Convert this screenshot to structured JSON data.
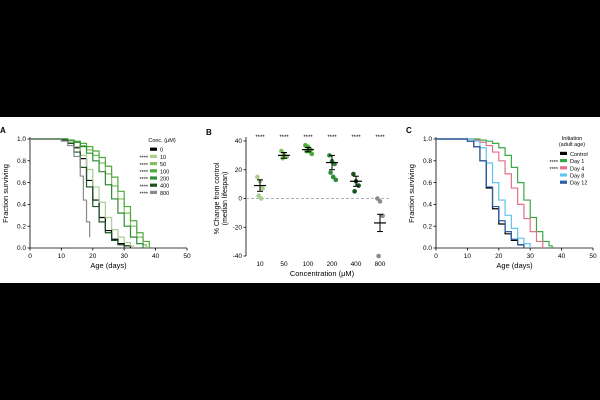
{
  "chart_data": [
    {
      "panel_label": "A",
      "type": "line",
      "step": true,
      "xlabel": "Age (days)",
      "ylabel": "Fraction surviving",
      "xlim": [
        0,
        50
      ],
      "ylim": [
        0,
        1.0
      ],
      "x_ticks": [
        "0",
        "10",
        "20",
        "30",
        "40",
        "50"
      ],
      "y_ticks": [
        "0.0",
        "0.2",
        "0.4",
        "0.6",
        "0.8",
        "1.0"
      ],
      "legend_title": "Conc. (μM)",
      "legend_placement": "top-right",
      "legend_marks": [
        "",
        "****",
        "****",
        "****",
        "****",
        "****",
        "****"
      ],
      "series": [
        {
          "name": "0",
          "color": "#000000",
          "points": [
            [
              0,
              1
            ],
            [
              8,
              1
            ],
            [
              10,
              0.99
            ],
            [
              12,
              0.97
            ],
            [
              14,
              0.92
            ],
            [
              16,
              0.82
            ],
            [
              18,
              0.62
            ],
            [
              20,
              0.44
            ],
            [
              22,
              0.28
            ],
            [
              24,
              0.16
            ],
            [
              26,
              0.08
            ],
            [
              28,
              0.04
            ],
            [
              30,
              0.02
            ],
            [
              32,
              0
            ]
          ]
        },
        {
          "name": "10",
          "color": "#a8cf8e",
          "points": [
            [
              0,
              1
            ],
            [
              8,
              1
            ],
            [
              10,
              0.99
            ],
            [
              12,
              0.97
            ],
            [
              14,
              0.93
            ],
            [
              16,
              0.85
            ],
            [
              18,
              0.72
            ],
            [
              20,
              0.56
            ],
            [
              22,
              0.42
            ],
            [
              24,
              0.28
            ],
            [
              26,
              0.17
            ],
            [
              28,
              0.1
            ],
            [
              30,
              0.05
            ],
            [
              32,
              0.02
            ],
            [
              33,
              0
            ]
          ]
        },
        {
          "name": "50",
          "color": "#7fbf5f",
          "points": [
            [
              0,
              1
            ],
            [
              10,
              1
            ],
            [
              12,
              0.99
            ],
            [
              14,
              0.97
            ],
            [
              16,
              0.94
            ],
            [
              18,
              0.9
            ],
            [
              20,
              0.85
            ],
            [
              22,
              0.78
            ],
            [
              24,
              0.68
            ],
            [
              26,
              0.57
            ],
            [
              28,
              0.45
            ],
            [
              30,
              0.32
            ],
            [
              32,
              0.2
            ],
            [
              34,
              0.1
            ],
            [
              36,
              0.03
            ],
            [
              37,
              0
            ]
          ]
        },
        {
          "name": "100",
          "color": "#4eab3e",
          "points": [
            [
              0,
              1
            ],
            [
              10,
              1
            ],
            [
              12,
              0.99
            ],
            [
              14,
              0.98
            ],
            [
              16,
              0.96
            ],
            [
              18,
              0.93
            ],
            [
              20,
              0.89
            ],
            [
              22,
              0.83
            ],
            [
              24,
              0.75
            ],
            [
              26,
              0.65
            ],
            [
              28,
              0.52
            ],
            [
              30,
              0.38
            ],
            [
              32,
              0.25
            ],
            [
              34,
              0.14
            ],
            [
              36,
              0.06
            ],
            [
              38,
              0
            ]
          ]
        },
        {
          "name": "200",
          "color": "#2e8b36",
          "points": [
            [
              0,
              1
            ],
            [
              10,
              1
            ],
            [
              12,
              0.99
            ],
            [
              14,
              0.97
            ],
            [
              16,
              0.93
            ],
            [
              18,
              0.87
            ],
            [
              20,
              0.8
            ],
            [
              22,
              0.7
            ],
            [
              24,
              0.58
            ],
            [
              26,
              0.45
            ],
            [
              28,
              0.32
            ],
            [
              30,
              0.2
            ],
            [
              32,
              0.1
            ],
            [
              34,
              0.04
            ],
            [
              36,
              0
            ]
          ]
        },
        {
          "name": "400",
          "color": "#1a5220",
          "points": [
            [
              0,
              1
            ],
            [
              8,
              1
            ],
            [
              10,
              0.99
            ],
            [
              12,
              0.96
            ],
            [
              14,
              0.88
            ],
            [
              16,
              0.74
            ],
            [
              18,
              0.56
            ],
            [
              20,
              0.38
            ],
            [
              22,
              0.24
            ],
            [
              24,
              0.14
            ],
            [
              26,
              0.07
            ],
            [
              28,
              0.03
            ],
            [
              30,
              0
            ]
          ]
        },
        {
          "name": "800",
          "color": "#8a8a8a",
          "points": [
            [
              0,
              1
            ],
            [
              8,
              1
            ],
            [
              10,
              0.98
            ],
            [
              12,
              0.94
            ],
            [
              14,
              0.84
            ],
            [
              16,
              0.66
            ],
            [
              17,
              0.44
            ],
            [
              18,
              0.24
            ],
            [
              19,
              0.1
            ]
          ]
        }
      ]
    },
    {
      "panel_label": "B",
      "type": "scatter",
      "xlabel": "Concentration (μM)",
      "ylabel": "% Change from control\n(median lifespan)",
      "ylim": [
        -40,
        40
      ],
      "y_ticks": [
        "-40",
        "-20",
        "0",
        "20",
        "40"
      ],
      "categories": [
        "10",
        "50",
        "100",
        "200",
        "400",
        "800"
      ],
      "significance": [
        "****",
        "****",
        "****",
        "****",
        "****",
        "****"
      ],
      "reference_line": 0,
      "groups": [
        {
          "category": "10",
          "color": "#a8cf8e",
          "mean": 9,
          "sem": 4,
          "values": [
            15,
            12,
            7,
            2,
            0
          ]
        },
        {
          "category": "50",
          "color": "#7fbf5f",
          "mean": 30,
          "sem": 2,
          "values": [
            33,
            31,
            29,
            28
          ]
        },
        {
          "category": "100",
          "color": "#4eab3e",
          "mean": 34,
          "sem": 1.5,
          "values": [
            37,
            36,
            34,
            33,
            33,
            31
          ]
        },
        {
          "category": "200",
          "color": "#2e8b36",
          "mean": 25,
          "sem": 5,
          "values": [
            30,
            26,
            24,
            18,
            15,
            13
          ]
        },
        {
          "category": "400",
          "color": "#1a5220",
          "mean": 12,
          "sem": 3.5,
          "values": [
            17,
            12,
            9,
            5
          ]
        },
        {
          "category": "800",
          "color": "#8a8a8a",
          "mean": -17,
          "sem": 6,
          "values": [
            0,
            -2,
            -12,
            -40
          ]
        }
      ]
    },
    {
      "panel_label": "C",
      "type": "line",
      "step": true,
      "xlabel": "Age (days)",
      "ylabel": "Fraction surviving",
      "xlim": [
        0,
        50
      ],
      "ylim": [
        0,
        1.0
      ],
      "x_ticks": [
        "0",
        "10",
        "20",
        "30",
        "40",
        "50"
      ],
      "y_ticks": [
        "0.0",
        "0.2",
        "0.4",
        "0.6",
        "0.8",
        "1.0"
      ],
      "legend_title": "Initiation\n(adult age)",
      "legend_placement": "top-right",
      "legend_marks": [
        "",
        "****",
        "****",
        "",
        ""
      ],
      "series": [
        {
          "name": "Control",
          "color": "#000000",
          "points": [
            [
              0,
              1
            ],
            [
              8,
              1
            ],
            [
              10,
              0.98
            ],
            [
              12,
              0.93
            ],
            [
              14,
              0.8
            ],
            [
              16,
              0.55
            ],
            [
              18,
              0.36
            ],
            [
              20,
              0.22
            ],
            [
              22,
              0.13
            ],
            [
              24,
              0.07
            ],
            [
              26,
              0.03
            ],
            [
              28,
              0
            ]
          ]
        },
        {
          "name": "Day 1",
          "color": "#3aa845",
          "points": [
            [
              0,
              1
            ],
            [
              12,
              1
            ],
            [
              14,
              0.99
            ],
            [
              16,
              0.98
            ],
            [
              18,
              0.96
            ],
            [
              20,
              0.92
            ],
            [
              22,
              0.85
            ],
            [
              24,
              0.74
            ],
            [
              26,
              0.6
            ],
            [
              28,
              0.44
            ],
            [
              30,
              0.28
            ],
            [
              32,
              0.15
            ],
            [
              34,
              0.06
            ],
            [
              36,
              0.02
            ],
            [
              37,
              0
            ]
          ]
        },
        {
          "name": "Day 4",
          "color": "#e2718a",
          "points": [
            [
              0,
              1
            ],
            [
              10,
              1
            ],
            [
              12,
              0.99
            ],
            [
              14,
              0.97
            ],
            [
              16,
              0.94
            ],
            [
              18,
              0.88
            ],
            [
              20,
              0.8
            ],
            [
              22,
              0.68
            ],
            [
              24,
              0.55
            ],
            [
              26,
              0.4
            ],
            [
              28,
              0.27
            ],
            [
              30,
              0.15
            ],
            [
              32,
              0.06
            ],
            [
              34,
              0
            ]
          ]
        },
        {
          "name": "Day 8",
          "color": "#5fc4ee",
          "points": [
            [
              0,
              1
            ],
            [
              10,
              1
            ],
            [
              12,
              0.98
            ],
            [
              14,
              0.92
            ],
            [
              16,
              0.78
            ],
            [
              18,
              0.6
            ],
            [
              20,
              0.44
            ],
            [
              22,
              0.3
            ],
            [
              24,
              0.18
            ],
            [
              26,
              0.09
            ],
            [
              28,
              0.04
            ],
            [
              30,
              0
            ]
          ]
        },
        {
          "name": "Day 12",
          "color": "#2d5fa8",
          "points": [
            [
              0,
              1
            ],
            [
              8,
              1
            ],
            [
              10,
              0.98
            ],
            [
              12,
              0.93
            ],
            [
              14,
              0.8
            ],
            [
              16,
              0.56
            ],
            [
              18,
              0.38
            ],
            [
              20,
              0.25
            ],
            [
              22,
              0.15
            ],
            [
              24,
              0.08
            ],
            [
              26,
              0.03
            ],
            [
              28,
              0
            ]
          ]
        }
      ]
    }
  ]
}
